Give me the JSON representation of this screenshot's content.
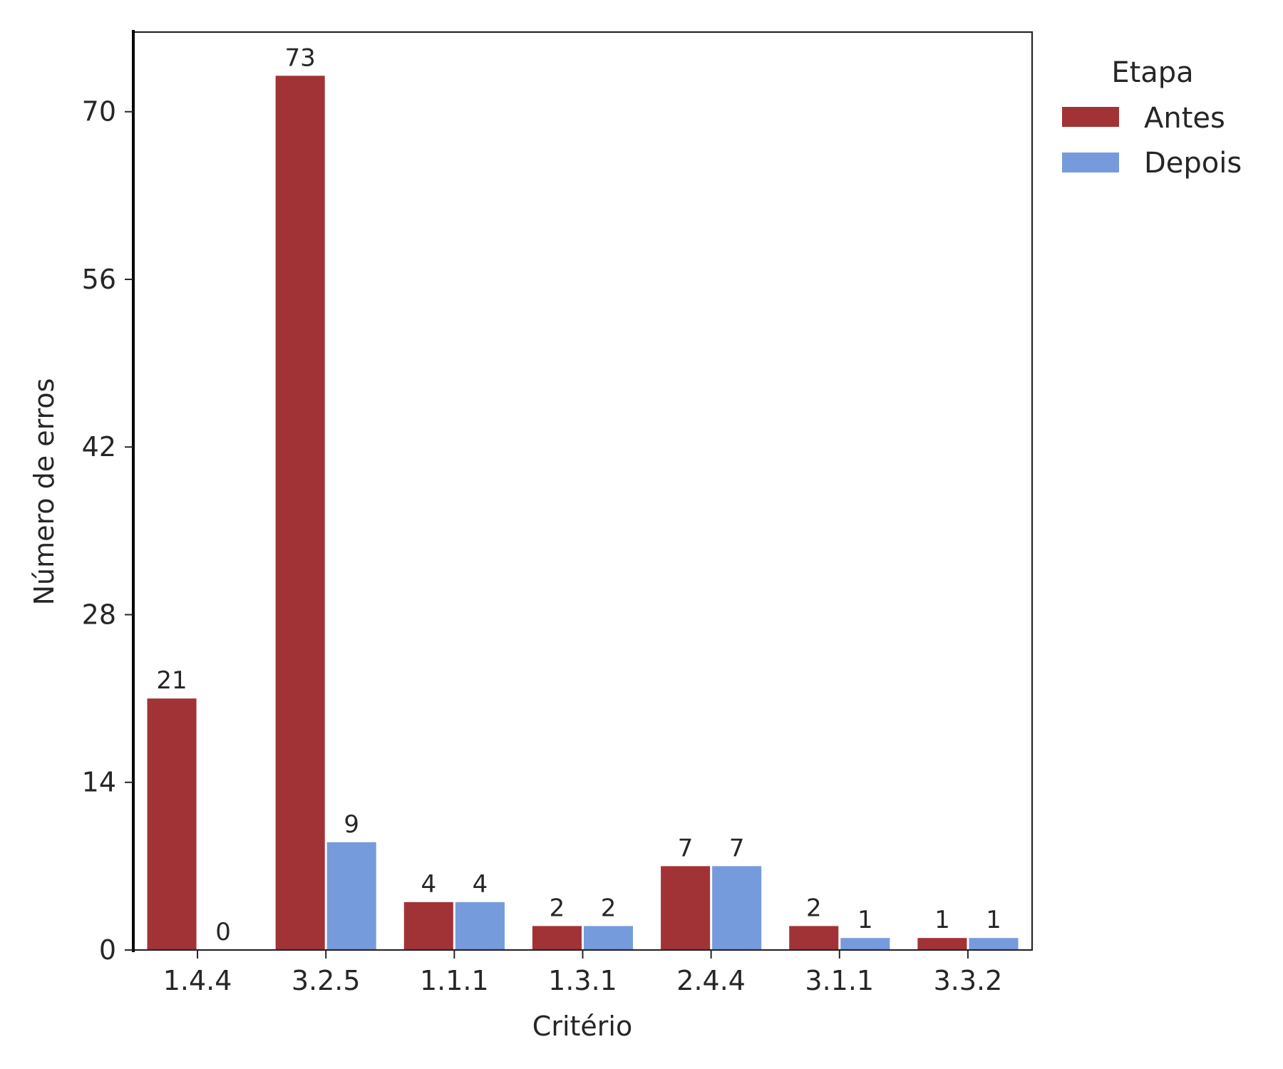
{
  "chart_data": {
    "type": "bar",
    "xlabel": "Critério",
    "ylabel": "Número de erros",
    "categories": [
      "1.4.4",
      "3.2.5",
      "1.1.1",
      "1.3.1",
      "2.4.4",
      "3.1.1",
      "3.3.2"
    ],
    "series": [
      {
        "name": "Antes",
        "values": [
          21,
          73,
          4,
          2,
          7,
          2,
          1
        ],
        "color": "#a13336"
      },
      {
        "name": "Depois",
        "values": [
          0,
          9,
          4,
          2,
          7,
          1,
          1
        ],
        "color": "#769bdc"
      }
    ],
    "yticks": [
      0,
      14,
      28,
      42,
      56,
      70
    ],
    "ylim": [
      0,
      76.65
    ],
    "grid": false,
    "legend": {
      "title": "Etapa",
      "placement": "outside-right"
    }
  }
}
